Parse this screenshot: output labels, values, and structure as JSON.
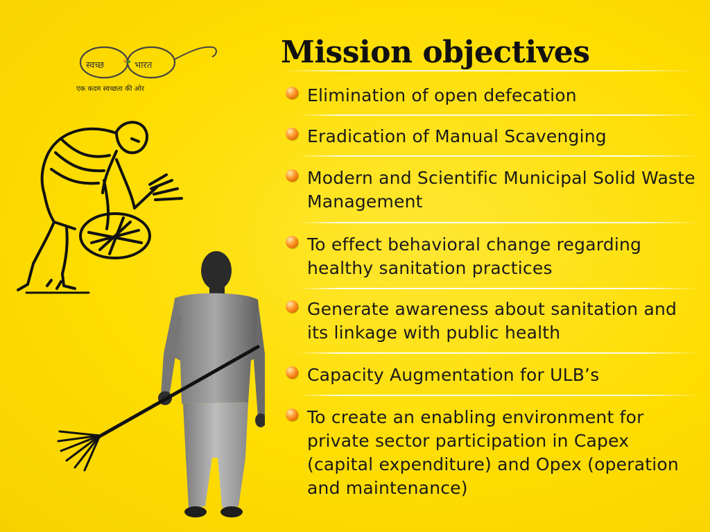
{
  "logo": {
    "word_left": "स्वच्छ",
    "word_right": "भारत",
    "tagline": "एक कदम स्वच्छता की ओर"
  },
  "title": "Mission objectives",
  "objectives": [
    "Elimination of open defecation",
    "Eradication of Manual Scavenging",
    "Modern and Scientific Municipal Solid Waste Management",
    "To effect behavioral change regarding healthy sanitation practices",
    "Generate awareness about sanitation and its linkage with public health",
    "Capacity Augmentation for ULB’s",
    "To create an enabling environment for private sector participation in Capex (capital expenditure) and Opex (operation and maintenance)"
  ],
  "colors": {
    "background": "#fedd00",
    "bullet": "#f08a1c",
    "text": "#1a1a1a"
  }
}
